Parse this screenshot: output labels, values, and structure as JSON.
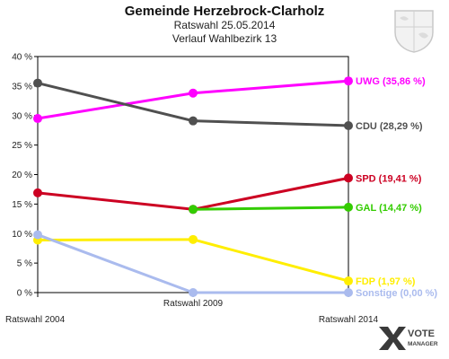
{
  "header": {
    "title": "Gemeinde Herzebrock-Clarholz",
    "subtitle1": "Ratswahl 25.05.2014",
    "subtitle2": "Verlauf Wahlbezirk 13"
  },
  "brand": {
    "line1": "VOTE",
    "line2": "MANAGER"
  },
  "chart_data": {
    "type": "line",
    "categories": [
      "Ratswahl 2004",
      "Ratswahl 2009",
      "Ratswahl 2014"
    ],
    "ylim": [
      0,
      40
    ],
    "yticks": [
      0,
      5,
      10,
      15,
      20,
      25,
      30,
      35,
      40
    ],
    "ytick_labels": [
      "0 %",
      "5 %",
      "10 %",
      "15 %",
      "20 %",
      "25 %",
      "30 %",
      "35 %",
      "40 %"
    ],
    "grid": false,
    "series": [
      {
        "name": "UWG",
        "end_label": "UWG (35,86 %)",
        "color": "#ff00ff",
        "values": [
          29.5,
          33.8,
          35.86
        ]
      },
      {
        "name": "CDU",
        "end_label": "CDU (28,29 %)",
        "color": "#505050",
        "values": [
          35.5,
          29.1,
          28.29
        ]
      },
      {
        "name": "SPD",
        "end_label": "SPD (19,41 %)",
        "color": "#cc0022",
        "values": [
          16.9,
          14.1,
          19.41
        ]
      },
      {
        "name": "GAL",
        "end_label": "GAL (14,47 %)",
        "color": "#33cc00",
        "values": [
          null,
          14.1,
          14.47
        ]
      },
      {
        "name": "FDP",
        "end_label": "FDP (1,97 %)",
        "color": "#ffee00",
        "values": [
          8.9,
          9.0,
          1.97
        ]
      },
      {
        "name": "Sonstige",
        "end_label": "Sonstige (0,00 %)",
        "color": "#aabbee",
        "values": [
          9.8,
          0.0,
          0.0
        ]
      }
    ]
  }
}
